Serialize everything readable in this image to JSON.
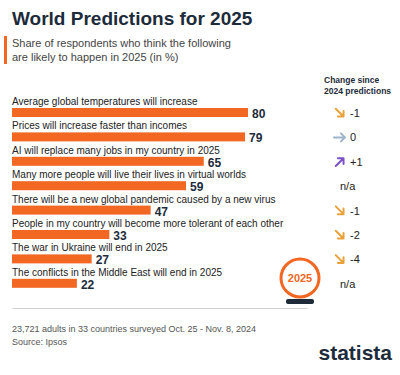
{
  "chart_data": {
    "type": "bar",
    "orientation": "horizontal",
    "title": "World Predictions for 2025",
    "subtitle": [
      "Share of respondents who think the following",
      "are likely to happen in 2025 (in %)"
    ],
    "categories": [
      "Average global temperatures will increase",
      "Prices will increase faster than incomes",
      "AI will replace many jobs in my country in 2025",
      "Many more people will live their lives in virtual worlds",
      "There will be a new global pandemic caused by a new virus",
      "People in my country will become more tolerant of each other",
      "The war in Ukraine will end in 2025",
      "The conflicts in the Middle East will end in 2025"
    ],
    "values": [
      80,
      79,
      65,
      59,
      47,
      33,
      27,
      22
    ],
    "color": "#f26722",
    "xlim": [
      0,
      100
    ],
    "tick_labels": false,
    "data_labels": true,
    "change_title": [
      "Change since",
      "2024 predictions"
    ],
    "change": [
      -1,
      0,
      1,
      null,
      -1,
      -2,
      -4,
      null
    ],
    "change_labels": [
      "-1",
      "0",
      "+1",
      "n/a",
      "-1",
      "-2",
      "-4",
      "n/a"
    ],
    "annotations": [
      "2025"
    ],
    "note": "23,721 adults in 33 countries surveyed Oct. 25 - Nov. 8, 2024",
    "source": "Source: Ipsos",
    "logo": "statista"
  }
}
